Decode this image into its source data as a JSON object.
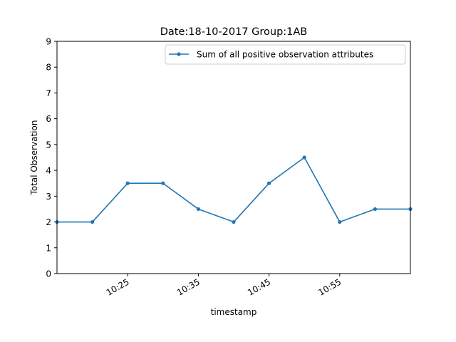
{
  "chart_data": {
    "type": "line",
    "title": "Date:18-10-2017  Group:1AB",
    "xlabel": "timestamp",
    "ylabel": "Total Observation",
    "x": [
      "10:15",
      "10:20",
      "10:25",
      "10:30",
      "10:35",
      "10:40",
      "10:45",
      "10:50",
      "10:55",
      "11:00",
      "11:05"
    ],
    "series": [
      {
        "name": "Sum of all positive observation attributes",
        "color": "#1f77b4",
        "values": [
          2,
          2,
          3.5,
          3.5,
          2.5,
          2,
          3.5,
          4.5,
          2,
          2.5,
          2.5
        ]
      }
    ],
    "xticks": [
      "10:25",
      "10:35",
      "10:45",
      "10:55"
    ],
    "yticks": [
      "0",
      "1",
      "2",
      "3",
      "4",
      "5",
      "6",
      "7",
      "8",
      "9"
    ],
    "ylim": [
      0,
      9
    ],
    "grid": false,
    "legend_position": "top-right"
  }
}
